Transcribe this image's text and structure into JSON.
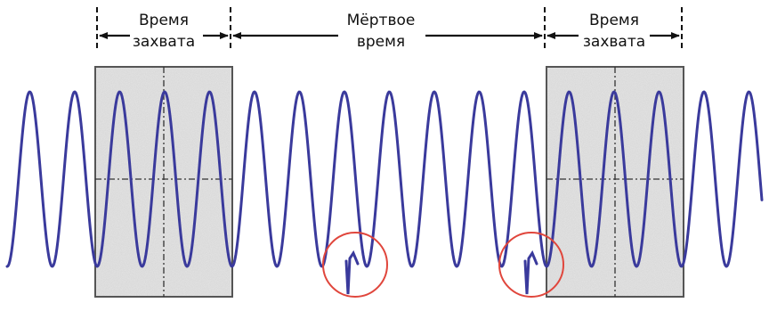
{
  "labels": {
    "capture_left_line1": "Время",
    "capture_left_line2": "захвата",
    "dead_time_line1": "Мёртвое",
    "dead_time_line2": "время",
    "capture_right_line1": "Время",
    "capture_right_line2": "захвата"
  },
  "colors": {
    "signal": "#3a3a9c",
    "capture_window_fill": "#e6e6e6",
    "capture_window_border": "#555555",
    "highlight_circle": "#e0463c",
    "arrows": "#111111"
  }
}
